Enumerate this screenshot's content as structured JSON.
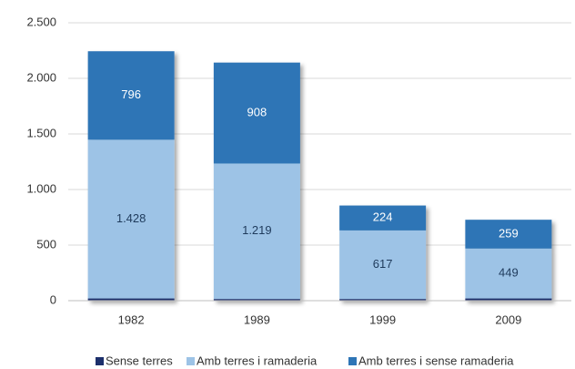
{
  "chart_data": {
    "type": "stacked_bar",
    "categories": [
      "1982",
      "1989",
      "1999",
      "2009"
    ],
    "series": [
      {
        "name": "Sense terres",
        "color": "#1c2f6b",
        "values": [
          20,
          15,
          15,
          20
        ]
      },
      {
        "name": "Amb terres i ramaderia",
        "color": "#9dc3e6",
        "values": [
          1428,
          1219,
          617,
          449
        ],
        "value_labels": [
          "1.428",
          "1.219",
          "617",
          "449"
        ]
      },
      {
        "name": "Amb terres i sense ramaderia",
        "color": "#2e75b6",
        "values": [
          796,
          908,
          224,
          259
        ]
      }
    ],
    "ylim": [
      0,
      2500
    ],
    "yticks": [
      0,
      500,
      {
        "value": 1000,
        "label": "1.000"
      },
      {
        "value": 1500,
        "label": "1.500"
      },
      {
        "value": 2000,
        "label": "2.000"
      },
      {
        "value": 2500,
        "label": "2.500"
      }
    ],
    "grid": true,
    "legend": "bottom"
  }
}
